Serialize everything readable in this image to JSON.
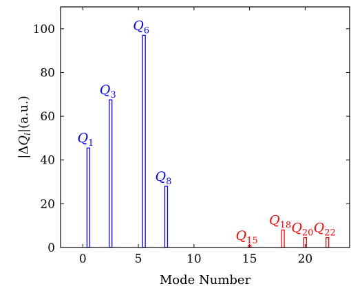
{
  "chart_data": {
    "type": "bar",
    "xlabel": "Mode Number",
    "ylabel": "|ΔQ_i|(a.u.)",
    "ylabel_parts": {
      "open": "|Δ",
      "var": "Q",
      "sub": "i",
      "close": "|(a.u.)"
    },
    "xlim": [
      -2,
      24
    ],
    "ylim": [
      0,
      110
    ],
    "xticks": [
      0,
      5,
      10,
      15,
      20
    ],
    "yticks": [
      0,
      20,
      40,
      60,
      80,
      100
    ],
    "grid": false,
    "bars": [
      {
        "x": 0.5,
        "value": 45.5,
        "label": "Q",
        "sub": "1",
        "color": "#0000ff"
      },
      {
        "x": 2.5,
        "value": 67.5,
        "label": "Q",
        "sub": "3",
        "color": "#0000ff"
      },
      {
        "x": 5.5,
        "value": 97,
        "label": "Q",
        "sub": "6",
        "color": "#0000ff"
      },
      {
        "x": 7.5,
        "value": 28,
        "label": "Q",
        "sub": "8",
        "color": "#0000ff"
      },
      {
        "x": 15,
        "value": 1,
        "label": "Q",
        "sub": "15",
        "color": "#ff0000"
      },
      {
        "x": 18,
        "value": 8,
        "label": "Q",
        "sub": "18",
        "color": "#ff0000"
      },
      {
        "x": 20,
        "value": 4.5,
        "label": "Q",
        "sub": "20",
        "color": "#ff0000"
      },
      {
        "x": 22,
        "value": 4.5,
        "label": "Q",
        "sub": "22",
        "color": "#ff0000"
      }
    ]
  }
}
